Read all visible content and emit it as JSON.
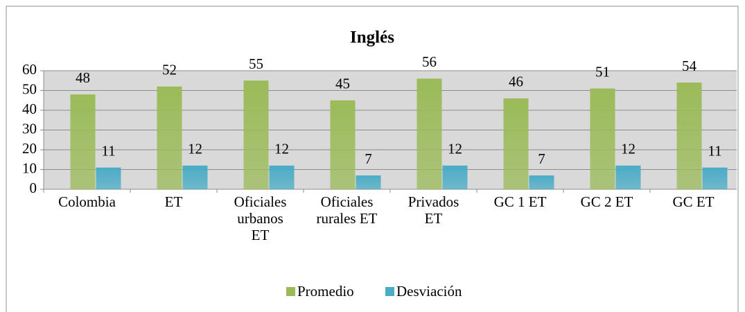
{
  "chart_data": {
    "type": "bar",
    "title": "Inglés",
    "categories": [
      "Colombia",
      "ET",
      "Oficiales urbanos ET",
      "Oficiales rurales ET",
      "Privados ET",
      "GC 1 ET",
      "GC 2 ET",
      "GC ET"
    ],
    "series": [
      {
        "name": "Promedio",
        "color": "#9bbb59",
        "values": [
          48,
          52,
          55,
          45,
          56,
          46,
          51,
          54
        ]
      },
      {
        "name": "Desviación",
        "color": "#4bacc6",
        "values": [
          11,
          12,
          12,
          7,
          12,
          7,
          12,
          11
        ]
      }
    ],
    "ylim": [
      0,
      60
    ],
    "yticks": [
      0,
      10,
      20,
      30,
      40,
      50,
      60
    ],
    "grid": true,
    "legend": "bottom"
  }
}
